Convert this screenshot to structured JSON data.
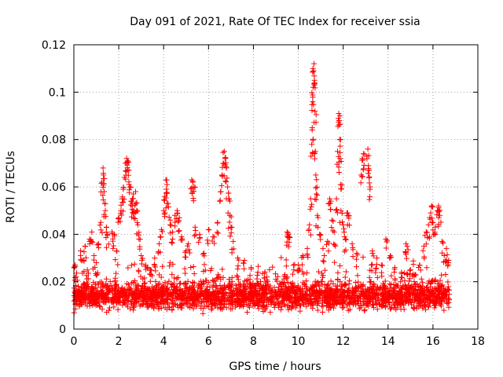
{
  "chart_data": {
    "type": "scatter",
    "title": "Day 091 of 2021, Rate Of TEC Index for receiver ssia",
    "xlabel": "GPS time / hours",
    "ylabel": "ROTI / TECUs",
    "xlim": [
      0,
      18
    ],
    "ylim": [
      0,
      0.12
    ],
    "x_ticks": [
      0,
      2,
      4,
      6,
      8,
      10,
      12,
      14,
      16,
      18
    ],
    "x_tick_labels": [
      "0",
      "2",
      "4",
      "6",
      "8",
      "10",
      "12",
      "14",
      "16",
      "18"
    ],
    "y_ticks": [
      0,
      0.02,
      0.04,
      0.06,
      0.08,
      0.1,
      0.12
    ],
    "y_tick_labels": [
      "0",
      "0.02",
      "0.04",
      "0.06",
      "0.08",
      "0.1",
      "0.12"
    ],
    "grid": true,
    "marker": "+",
    "series_color": "#ff0000",
    "background_band": {
      "x_range": [
        0,
        16.75
      ],
      "y_range": [
        0.006,
        0.022
      ],
      "note": "dense cloud of points spanning the whole time range"
    },
    "series": [
      {
        "name": "ROTI",
        "points": [
          [
            0.05,
            0.027
          ],
          [
            0.1,
            0.022
          ],
          [
            0.2,
            0.018
          ],
          [
            0.3,
            0.033
          ],
          [
            0.4,
            0.029
          ],
          [
            0.5,
            0.035
          ],
          [
            0.6,
            0.025
          ],
          [
            0.7,
            0.038
          ],
          [
            0.8,
            0.041
          ],
          [
            0.9,
            0.031
          ],
          [
            1.0,
            0.028
          ],
          [
            1.1,
            0.036
          ],
          [
            1.2,
            0.045
          ],
          [
            1.25,
            0.062
          ],
          [
            1.3,
            0.068
          ],
          [
            1.32,
            0.065
          ],
          [
            1.35,
            0.058
          ],
          [
            1.4,
            0.05
          ],
          [
            1.45,
            0.043
          ],
          [
            1.5,
            0.04
          ],
          [
            1.7,
            0.041
          ],
          [
            1.8,
            0.04
          ],
          [
            1.9,
            0.033
          ],
          [
            2.0,
            0.047
          ],
          [
            2.1,
            0.05
          ],
          [
            2.15,
            0.055
          ],
          [
            2.2,
            0.059
          ],
          [
            2.25,
            0.064
          ],
          [
            2.3,
            0.07
          ],
          [
            2.35,
            0.072
          ],
          [
            2.4,
            0.071
          ],
          [
            2.45,
            0.067
          ],
          [
            2.5,
            0.06
          ],
          [
            2.55,
            0.054
          ],
          [
            2.6,
            0.052
          ],
          [
            2.65,
            0.057
          ],
          [
            2.7,
            0.049
          ],
          [
            2.75,
            0.058
          ],
          [
            2.8,
            0.05
          ],
          [
            2.85,
            0.044
          ],
          [
            2.9,
            0.038
          ],
          [
            3.0,
            0.031
          ],
          [
            3.2,
            0.027
          ],
          [
            3.4,
            0.025
          ],
          [
            3.6,
            0.03
          ],
          [
            3.8,
            0.036
          ],
          [
            3.9,
            0.042
          ],
          [
            4.0,
            0.05
          ],
          [
            4.05,
            0.056
          ],
          [
            4.1,
            0.063
          ],
          [
            4.15,
            0.061
          ],
          [
            4.2,
            0.053
          ],
          [
            4.3,
            0.046
          ],
          [
            4.4,
            0.041
          ],
          [
            4.5,
            0.048
          ],
          [
            4.6,
            0.05
          ],
          [
            4.7,
            0.047
          ],
          [
            4.8,
            0.039
          ],
          [
            5.0,
            0.033
          ],
          [
            5.1,
            0.036
          ],
          [
            5.25,
            0.063
          ],
          [
            5.3,
            0.062
          ],
          [
            5.35,
            0.06
          ],
          [
            5.4,
            0.043
          ],
          [
            5.6,
            0.04
          ],
          [
            5.8,
            0.032
          ],
          [
            6.0,
            0.042
          ],
          [
            6.2,
            0.039
          ],
          [
            6.4,
            0.045
          ],
          [
            6.55,
            0.058
          ],
          [
            6.6,
            0.065
          ],
          [
            6.65,
            0.07
          ],
          [
            6.7,
            0.075
          ],
          [
            6.75,
            0.072
          ],
          [
            6.8,
            0.068
          ],
          [
            6.85,
            0.06
          ],
          [
            6.9,
            0.055
          ],
          [
            6.95,
            0.048
          ],
          [
            7.0,
            0.043
          ],
          [
            7.1,
            0.037
          ],
          [
            7.3,
            0.03
          ],
          [
            7.6,
            0.029
          ],
          [
            7.9,
            0.026
          ],
          [
            8.2,
            0.024
          ],
          [
            8.6,
            0.022
          ],
          [
            9.0,
            0.021
          ],
          [
            9.4,
            0.023
          ],
          [
            9.5,
            0.041
          ],
          [
            9.55,
            0.04
          ],
          [
            9.6,
            0.039
          ],
          [
            9.8,
            0.025
          ],
          [
            10.0,
            0.027
          ],
          [
            10.2,
            0.031
          ],
          [
            10.4,
            0.034
          ],
          [
            10.5,
            0.044
          ],
          [
            10.55,
            0.055
          ],
          [
            10.6,
            0.078
          ],
          [
            10.62,
            0.085
          ],
          [
            10.64,
            0.096
          ],
          [
            10.66,
            0.102
          ],
          [
            10.68,
            0.109
          ],
          [
            10.7,
            0.112
          ],
          [
            10.72,
            0.105
          ],
          [
            10.74,
            0.092
          ],
          [
            10.76,
            0.075
          ],
          [
            10.78,
            0.065
          ],
          [
            10.8,
            0.057
          ],
          [
            10.85,
            0.048
          ],
          [
            10.95,
            0.04
          ],
          [
            11.1,
            0.034
          ],
          [
            11.3,
            0.037
          ],
          [
            11.4,
            0.055
          ],
          [
            11.45,
            0.054
          ],
          [
            11.5,
            0.046
          ],
          [
            11.6,
            0.041
          ],
          [
            11.7,
            0.055
          ],
          [
            11.75,
            0.075
          ],
          [
            11.8,
            0.091
          ],
          [
            11.82,
            0.088
          ],
          [
            11.84,
            0.08
          ],
          [
            11.86,
            0.072
          ],
          [
            11.88,
            0.061
          ],
          [
            11.9,
            0.05
          ],
          [
            12.0,
            0.044
          ],
          [
            12.1,
            0.038
          ],
          [
            12.2,
            0.049
          ],
          [
            12.25,
            0.048
          ],
          [
            12.4,
            0.036
          ],
          [
            12.6,
            0.032
          ],
          [
            12.8,
            0.065
          ],
          [
            12.85,
            0.072
          ],
          [
            12.9,
            0.074
          ],
          [
            13.1,
            0.076
          ],
          [
            13.12,
            0.069
          ],
          [
            13.15,
            0.067
          ],
          [
            13.2,
            0.06
          ],
          [
            13.3,
            0.033
          ],
          [
            13.5,
            0.03
          ],
          [
            13.7,
            0.027
          ],
          [
            13.9,
            0.038
          ],
          [
            14.1,
            0.031
          ],
          [
            14.3,
            0.026
          ],
          [
            14.6,
            0.024
          ],
          [
            14.8,
            0.036
          ],
          [
            14.85,
            0.035
          ],
          [
            15.0,
            0.025
          ],
          [
            15.2,
            0.023
          ],
          [
            15.4,
            0.027
          ],
          [
            15.6,
            0.035
          ],
          [
            15.7,
            0.041
          ],
          [
            15.8,
            0.044
          ],
          [
            15.9,
            0.049
          ],
          [
            15.95,
            0.052
          ],
          [
            16.0,
            0.045
          ],
          [
            16.1,
            0.043
          ],
          [
            16.2,
            0.05
          ],
          [
            16.25,
            0.052
          ],
          [
            16.3,
            0.048
          ],
          [
            16.4,
            0.037
          ],
          [
            16.5,
            0.031
          ],
          [
            16.6,
            0.034
          ],
          [
            16.7,
            0.029
          ]
        ]
      }
    ]
  }
}
